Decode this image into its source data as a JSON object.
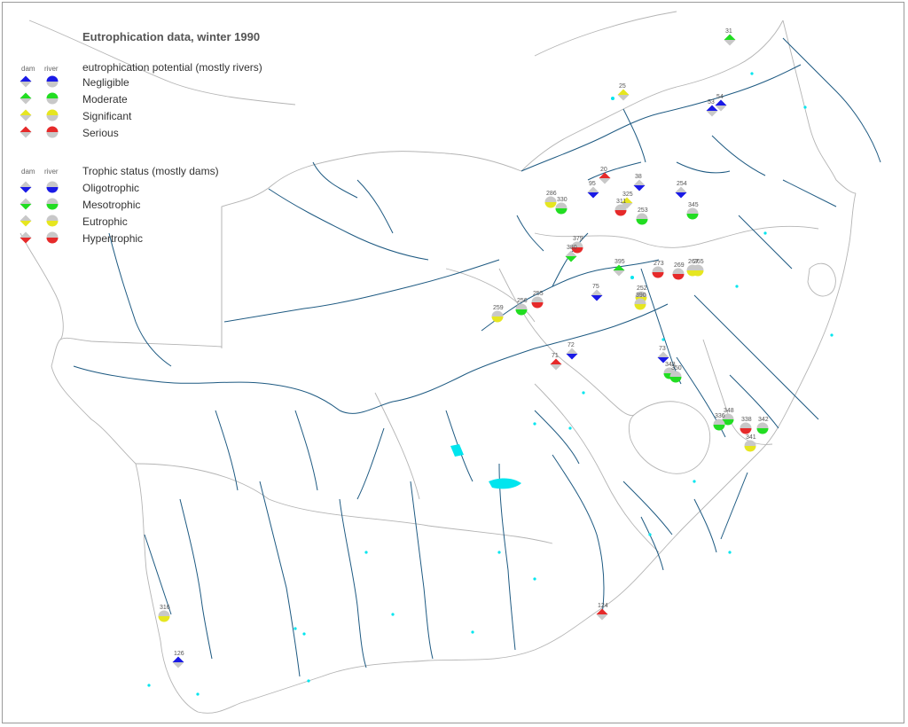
{
  "title": "Eutrophication data, winter 1990",
  "legend": {
    "col_dam": "dam",
    "col_river": "river",
    "potential": {
      "heading": "eutrophication potential (mostly rivers)",
      "items": [
        {
          "label": "Negligible",
          "color": "#1a1ae6"
        },
        {
          "label": "Moderate",
          "color": "#22dd22"
        },
        {
          "label": "Significant",
          "color": "#e6e620"
        },
        {
          "label": "Serious",
          "color": "#e62a2a"
        }
      ]
    },
    "trophic": {
      "heading": "Trophic status (mostly dams)",
      "items": [
        {
          "label": "Oligotrophic",
          "color": "#1a1ae6"
        },
        {
          "label": "Mesotrophic",
          "color": "#22dd22"
        },
        {
          "label": "Eutrophic",
          "color": "#e6e620"
        },
        {
          "label": "Hypertrophic",
          "color": "#e62a2a"
        }
      ]
    }
  },
  "neutral_color": "#c8c8c8",
  "river_color": "#1e5a82",
  "border_color": "#b4b4b4",
  "water_color": "#00e5ee",
  "sites": [
    {
      "id": "31",
      "kind": "dam",
      "status": "moderate"
    },
    {
      "id": "25",
      "kind": "dam",
      "status": "significant"
    },
    {
      "id": "53",
      "kind": "dam",
      "status": "negligible"
    },
    {
      "id": "54",
      "kind": "dam",
      "status": "negligible"
    },
    {
      "id": "20",
      "kind": "dam",
      "status": "serious"
    },
    {
      "id": "38",
      "kind": "dam",
      "status": "oligotrophic"
    },
    {
      "id": "286",
      "kind": "river",
      "status": "eutrophic"
    },
    {
      "id": "330",
      "kind": "river",
      "status": "mesotrophic"
    },
    {
      "id": "95",
      "kind": "dam",
      "status": "oligotrophic"
    },
    {
      "id": "325",
      "kind": "dam",
      "status": "significant"
    },
    {
      "id": "311",
      "kind": "river",
      "status": "hypertrophic"
    },
    {
      "id": "254",
      "kind": "dam",
      "status": "oligotrophic"
    },
    {
      "id": "345",
      "kind": "river",
      "status": "mesotrophic"
    },
    {
      "id": "253",
      "kind": "river",
      "status": "mesotrophic"
    },
    {
      "id": "379",
      "kind": "river",
      "status": "hypertrophic"
    },
    {
      "id": "380",
      "kind": "dam",
      "status": "mesotrophic"
    },
    {
      "id": "395",
      "kind": "dam",
      "status": "moderate"
    },
    {
      "id": "273",
      "kind": "river",
      "status": "hypertrophic"
    },
    {
      "id": "269",
      "kind": "river",
      "status": "hypertrophic"
    },
    {
      "id": "267",
      "kind": "river",
      "status": "eutrophic"
    },
    {
      "id": "265",
      "kind": "river",
      "status": "eutrophic"
    },
    {
      "id": "75",
      "kind": "dam",
      "status": "oligotrophic"
    },
    {
      "id": "252",
      "kind": "river",
      "status": "eutrophic"
    },
    {
      "id": "390",
      "kind": "river",
      "status": "eutrophic"
    },
    {
      "id": "255",
      "kind": "river",
      "status": "hypertrophic"
    },
    {
      "id": "256",
      "kind": "river",
      "status": "mesotrophic"
    },
    {
      "id": "259",
      "kind": "river",
      "status": "eutrophic"
    },
    {
      "id": "72",
      "kind": "dam",
      "status": "oligotrophic"
    },
    {
      "id": "71",
      "kind": "dam",
      "status": "serious"
    },
    {
      "id": "73",
      "kind": "dam",
      "status": "oligotrophic"
    },
    {
      "id": "348",
      "kind": "river",
      "status": "mesotrophic"
    },
    {
      "id": "350",
      "kind": "river",
      "status": "mesotrophic"
    },
    {
      "id": "348",
      "kind": "river",
      "status": "mesotrophic"
    },
    {
      "id": "336",
      "kind": "river",
      "status": "mesotrophic"
    },
    {
      "id": "338",
      "kind": "river",
      "status": "hypertrophic"
    },
    {
      "id": "342",
      "kind": "river",
      "status": "mesotrophic"
    },
    {
      "id": "341",
      "kind": "river",
      "status": "eutrophic"
    },
    {
      "id": "124",
      "kind": "dam",
      "status": "serious"
    },
    {
      "id": "316",
      "kind": "river",
      "status": "eutrophic"
    },
    {
      "id": "126",
      "kind": "dam",
      "status": "negligible"
    }
  ]
}
